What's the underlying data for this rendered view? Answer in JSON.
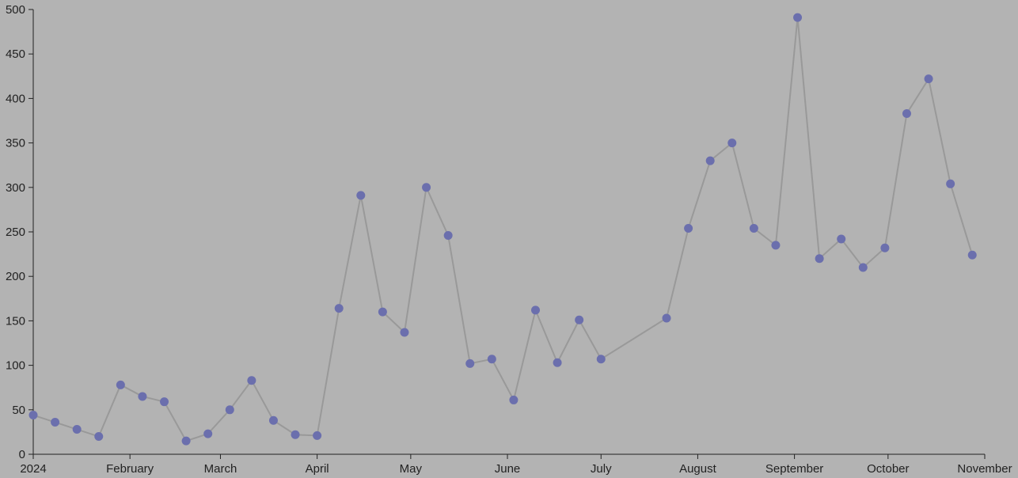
{
  "chart_data": {
    "type": "line",
    "x": [
      "2024-01-01",
      "2024-01-08",
      "2024-01-15",
      "2024-01-22",
      "2024-01-29",
      "2024-02-05",
      "2024-02-12",
      "2024-02-19",
      "2024-02-26",
      "2024-03-04",
      "2024-03-11",
      "2024-03-18",
      "2024-03-25",
      "2024-04-01",
      "2024-04-08",
      "2024-04-15",
      "2024-04-22",
      "2024-04-29",
      "2024-05-06",
      "2024-05-13",
      "2024-05-20",
      "2024-05-27",
      "2024-06-03",
      "2024-06-10",
      "2024-06-17",
      "2024-06-24",
      "2024-07-01",
      "2024-07-22",
      "2024-07-29",
      "2024-08-05",
      "2024-08-12",
      "2024-08-19",
      "2024-08-26",
      "2024-09-02",
      "2024-09-09",
      "2024-09-16",
      "2024-09-23",
      "2024-09-30",
      "2024-10-07",
      "2024-10-14",
      "2024-10-21",
      "2024-10-28"
    ],
    "series": [
      {
        "color": "#6b6fad",
        "line_color": "#999999",
        "values": [
          44,
          36,
          28,
          20,
          78,
          65,
          59,
          15,
          23,
          50,
          83,
          38,
          22,
          21,
          164,
          291,
          160,
          137,
          300,
          246,
          102,
          107,
          61,
          162,
          103,
          151,
          107,
          153,
          254,
          330,
          350,
          254,
          235,
          491,
          220,
          242,
          210,
          232,
          383,
          422,
          304,
          224
        ]
      }
    ],
    "xlim": [
      "2024-01-01",
      "2024-11-01"
    ],
    "xticks": [
      {
        "value": "2024-01-01",
        "label": "2024"
      },
      {
        "value": "2024-02-01",
        "label": "February"
      },
      {
        "value": "2024-03-01",
        "label": "March"
      },
      {
        "value": "2024-04-01",
        "label": "April"
      },
      {
        "value": "2024-05-01",
        "label": "May"
      },
      {
        "value": "2024-06-01",
        "label": "June"
      },
      {
        "value": "2024-07-01",
        "label": "July"
      },
      {
        "value": "2024-08-01",
        "label": "August"
      },
      {
        "value": "2024-09-01",
        "label": "September"
      },
      {
        "value": "2024-10-01",
        "label": "October"
      },
      {
        "value": "2024-11-01",
        "label": "November"
      }
    ],
    "ylim": [
      0,
      500
    ],
    "yticks": [
      0,
      50,
      100,
      150,
      200,
      250,
      300,
      350,
      400,
      450,
      500
    ]
  }
}
